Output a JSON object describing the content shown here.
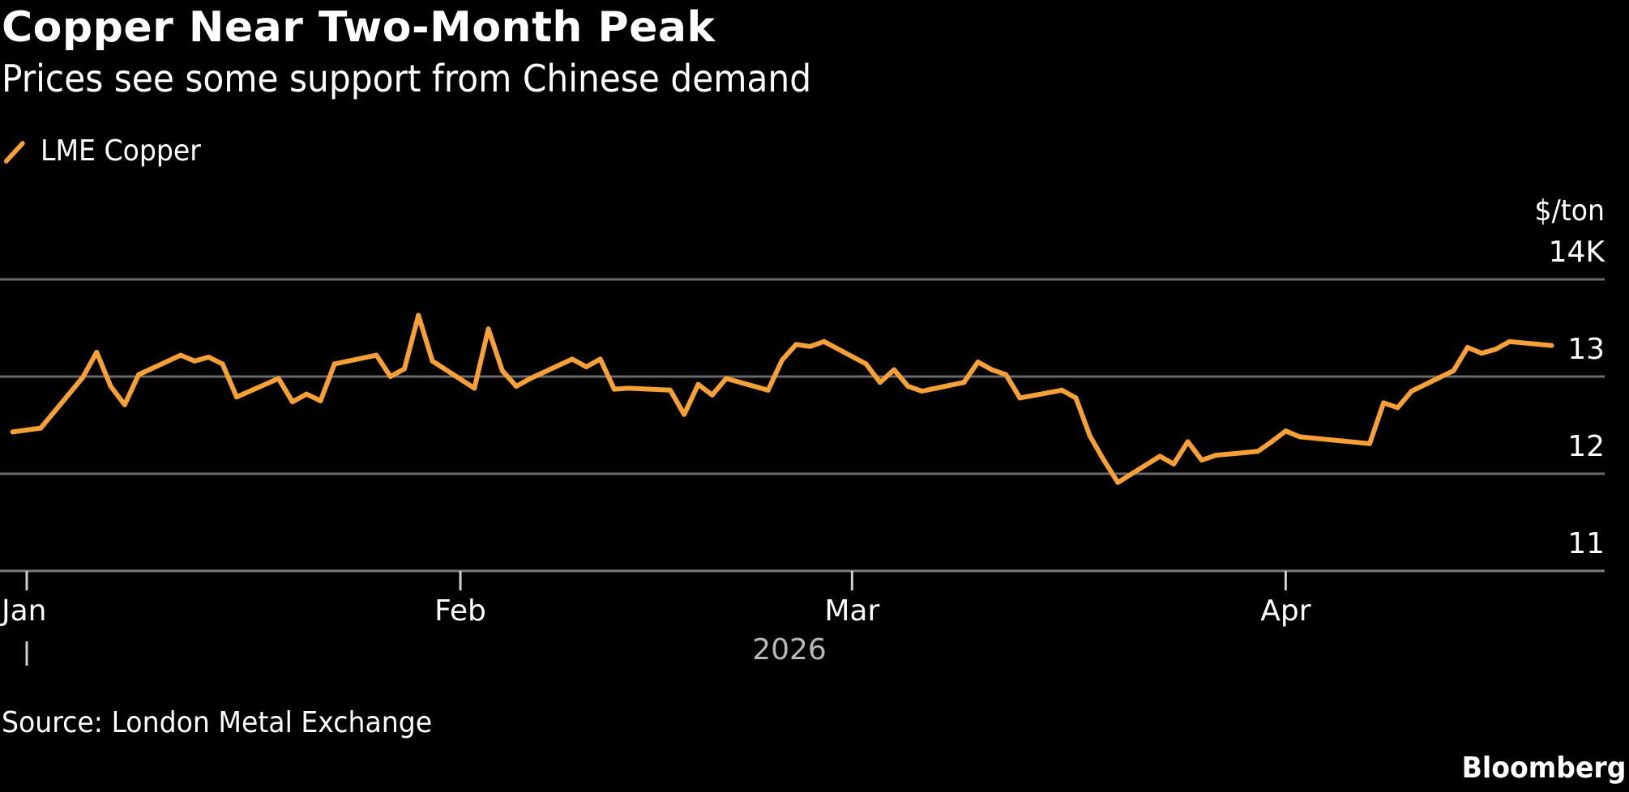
{
  "title": "Copper Near Two-Month Peak",
  "subtitle": "Prices see some support from Chinese demand",
  "source": "Source: London Metal Exchange",
  "brand": "Bloomberg",
  "colors": {
    "background": "#000000",
    "series": "#f7a035",
    "grid": "#6a6a6a",
    "text": "#ffffff"
  },
  "chart_data": {
    "type": "line",
    "title": "Copper Near Two-Month Peak",
    "subtitle": "Prices see some support from Chinese demand",
    "ylabel": "$/ton",
    "y_unit_note": "",
    "yticks": [
      11,
      12,
      13,
      14
    ],
    "ytick_labels": [
      "11",
      "12",
      "13",
      "14K"
    ],
    "ylim": [
      11,
      14
    ],
    "y_axis_side": "right",
    "grid": true,
    "legend_position": "top-left",
    "xticks": [
      {
        "date": "2026-01-01",
        "label": "Jan"
      },
      {
        "date": "2026-02-01",
        "label": "Feb"
      },
      {
        "date": "2026-03-01",
        "label": "Mar"
      },
      {
        "date": "2026-04-01",
        "label": "Apr"
      }
    ],
    "year_label": "2026",
    "series": [
      {
        "name": "LME Copper",
        "color": "#f7a035",
        "x": [
          "2025-12-31",
          "2026-01-02",
          "2026-01-05",
          "2026-01-06",
          "2026-01-07",
          "2026-01-08",
          "2026-01-09",
          "2026-01-12",
          "2026-01-13",
          "2026-01-14",
          "2026-01-15",
          "2026-01-16",
          "2026-01-19",
          "2026-01-20",
          "2026-01-21",
          "2026-01-22",
          "2026-01-23",
          "2026-01-26",
          "2026-01-27",
          "2026-01-28",
          "2026-01-29",
          "2026-01-30",
          "2026-02-02",
          "2026-02-03",
          "2026-02-04",
          "2026-02-05",
          "2026-02-06",
          "2026-02-09",
          "2026-02-10",
          "2026-02-11",
          "2026-02-12",
          "2026-02-13",
          "2026-02-16",
          "2026-02-17",
          "2026-02-18",
          "2026-02-19",
          "2026-02-20",
          "2026-02-23",
          "2026-02-24",
          "2026-02-25",
          "2026-02-26",
          "2026-02-27",
          "2026-03-02",
          "2026-03-03",
          "2026-03-04",
          "2026-03-05",
          "2026-03-06",
          "2026-03-09",
          "2026-03-10",
          "2026-03-11",
          "2026-03-12",
          "2026-03-13",
          "2026-03-16",
          "2026-03-17",
          "2026-03-18",
          "2026-03-19",
          "2026-03-20",
          "2026-03-23",
          "2026-03-24",
          "2026-03-25",
          "2026-03-26",
          "2026-03-27",
          "2026-03-30",
          "2026-03-31",
          "2026-04-01",
          "2026-04-02",
          "2026-04-07",
          "2026-04-08",
          "2026-04-09",
          "2026-04-10",
          "2026-04-13",
          "2026-04-14",
          "2026-04-15",
          "2026-04-16",
          "2026-04-17",
          "2026-04-20"
        ],
        "values": [
          12.43,
          12.47,
          12.99,
          13.25,
          12.9,
          12.71,
          13.02,
          13.22,
          13.16,
          13.2,
          13.13,
          12.79,
          12.98,
          12.74,
          12.82,
          12.75,
          13.13,
          13.22,
          13.0,
          13.08,
          13.63,
          13.16,
          12.88,
          13.49,
          13.06,
          12.9,
          12.98,
          13.18,
          13.1,
          13.18,
          12.87,
          12.88,
          12.86,
          12.61,
          12.92,
          12.81,
          12.98,
          12.86,
          13.17,
          13.33,
          13.31,
          13.36,
          13.13,
          12.94,
          13.07,
          12.9,
          12.85,
          12.94,
          13.15,
          13.07,
          13.02,
          12.78,
          12.86,
          12.78,
          12.39,
          12.14,
          11.91,
          12.18,
          12.1,
          12.33,
          12.14,
          12.19,
          12.23,
          12.33,
          12.44,
          12.38,
          12.31,
          12.73,
          12.68,
          12.85,
          13.06,
          13.3,
          13.24,
          13.28,
          13.36,
          13.32
        ]
      }
    ]
  }
}
